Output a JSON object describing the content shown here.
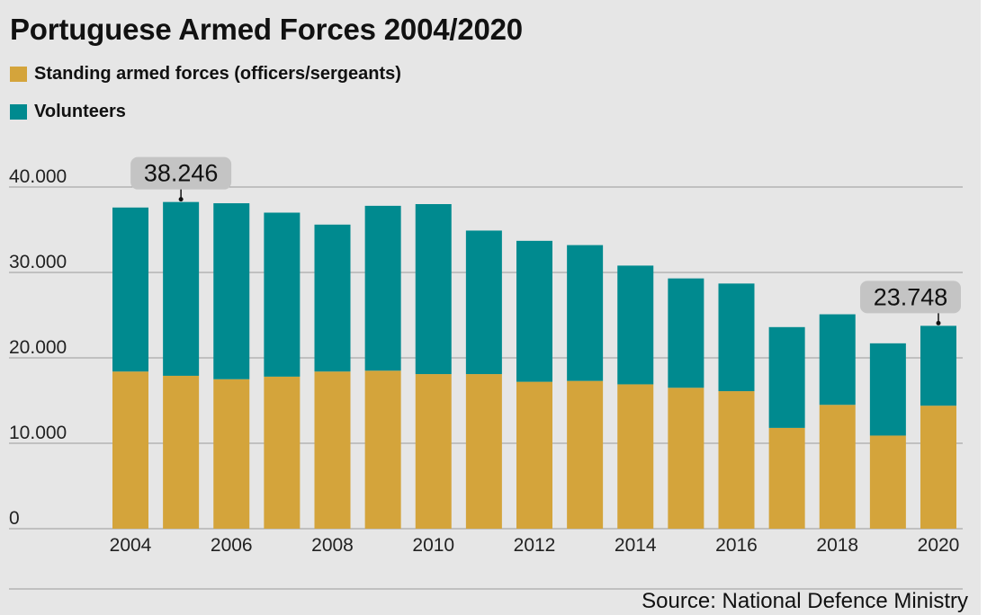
{
  "chart_data": {
    "type": "bar",
    "stacked": true,
    "title": "Portuguese Armed Forces 2004/2020",
    "legend_placement": "top-left",
    "grid": true,
    "categories": [
      "2004",
      "2005",
      "2006",
      "2007",
      "2008",
      "2009",
      "2010",
      "2011",
      "2012",
      "2013",
      "2014",
      "2015",
      "2016",
      "2017",
      "2018",
      "2019",
      "2020"
    ],
    "x_tick_labels": [
      "2004",
      "2006",
      "2008",
      "2010",
      "2012",
      "2014",
      "2016",
      "2018",
      "2020"
    ],
    "ylim": [
      0,
      40000
    ],
    "y_ticks": [
      0,
      10000,
      20000,
      30000,
      40000
    ],
    "y_tick_labels": [
      "0",
      "10.000",
      "20.000",
      "30.000",
      "40.000"
    ],
    "series": [
      {
        "name": "Standing armed forces (officers/sergeants)",
        "color": "#d4a43b",
        "values": [
          18400,
          17900,
          17500,
          17800,
          18400,
          18500,
          18100,
          18100,
          17200,
          17300,
          16900,
          16500,
          16100,
          11800,
          14500,
          10900,
          14400
        ]
      },
      {
        "name": "Volunteers",
        "color": "#008a8f",
        "values": [
          19200,
          20346,
          20600,
          19200,
          17200,
          19300,
          19900,
          16800,
          16500,
          15900,
          13900,
          12800,
          12600,
          11800,
          10600,
          10800,
          9348
        ]
      }
    ],
    "annotations": [
      {
        "category": "2005",
        "label": "38.246"
      },
      {
        "category": "2020",
        "label": "23.748"
      }
    ],
    "source": "Source: National Defence Ministry"
  }
}
